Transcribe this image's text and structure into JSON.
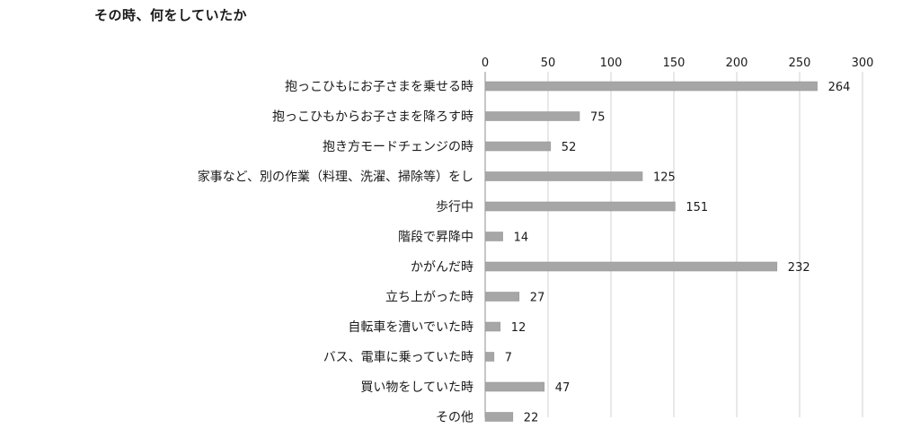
{
  "chart_data": {
    "type": "bar",
    "orientation": "horizontal",
    "title": "その時、何をしていたか",
    "xlabel": "",
    "ylabel": "",
    "xlim": [
      0,
      300
    ],
    "xticks": [
      "0",
      "50",
      "100",
      "150",
      "200",
      "250",
      "300"
    ],
    "grid": "vertical",
    "legend": "none",
    "bar_color": "#a6a6a6",
    "categories": [
      "抱っこひもにお子さまを乗せる時",
      "抱っこひもからお子さまを降ろす時",
      "抱き方モードチェンジの時",
      "家事など、別の作業（料理、洗濯、掃除等）をし",
      "歩行中",
      "階段で昇降中",
      "かがんだ時",
      "立ち上がった時",
      "自転車を漕いでいた時",
      "バス、電車に乗っていた時",
      "買い物をしていた時",
      "その他"
    ],
    "values": [
      264,
      75,
      52,
      125,
      151,
      14,
      232,
      27,
      12,
      7,
      47,
      22
    ],
    "data_labels": [
      "264",
      "75",
      "52",
      "125",
      "151",
      "14",
      "232",
      "27",
      "12",
      "7",
      "47",
      "22"
    ]
  }
}
